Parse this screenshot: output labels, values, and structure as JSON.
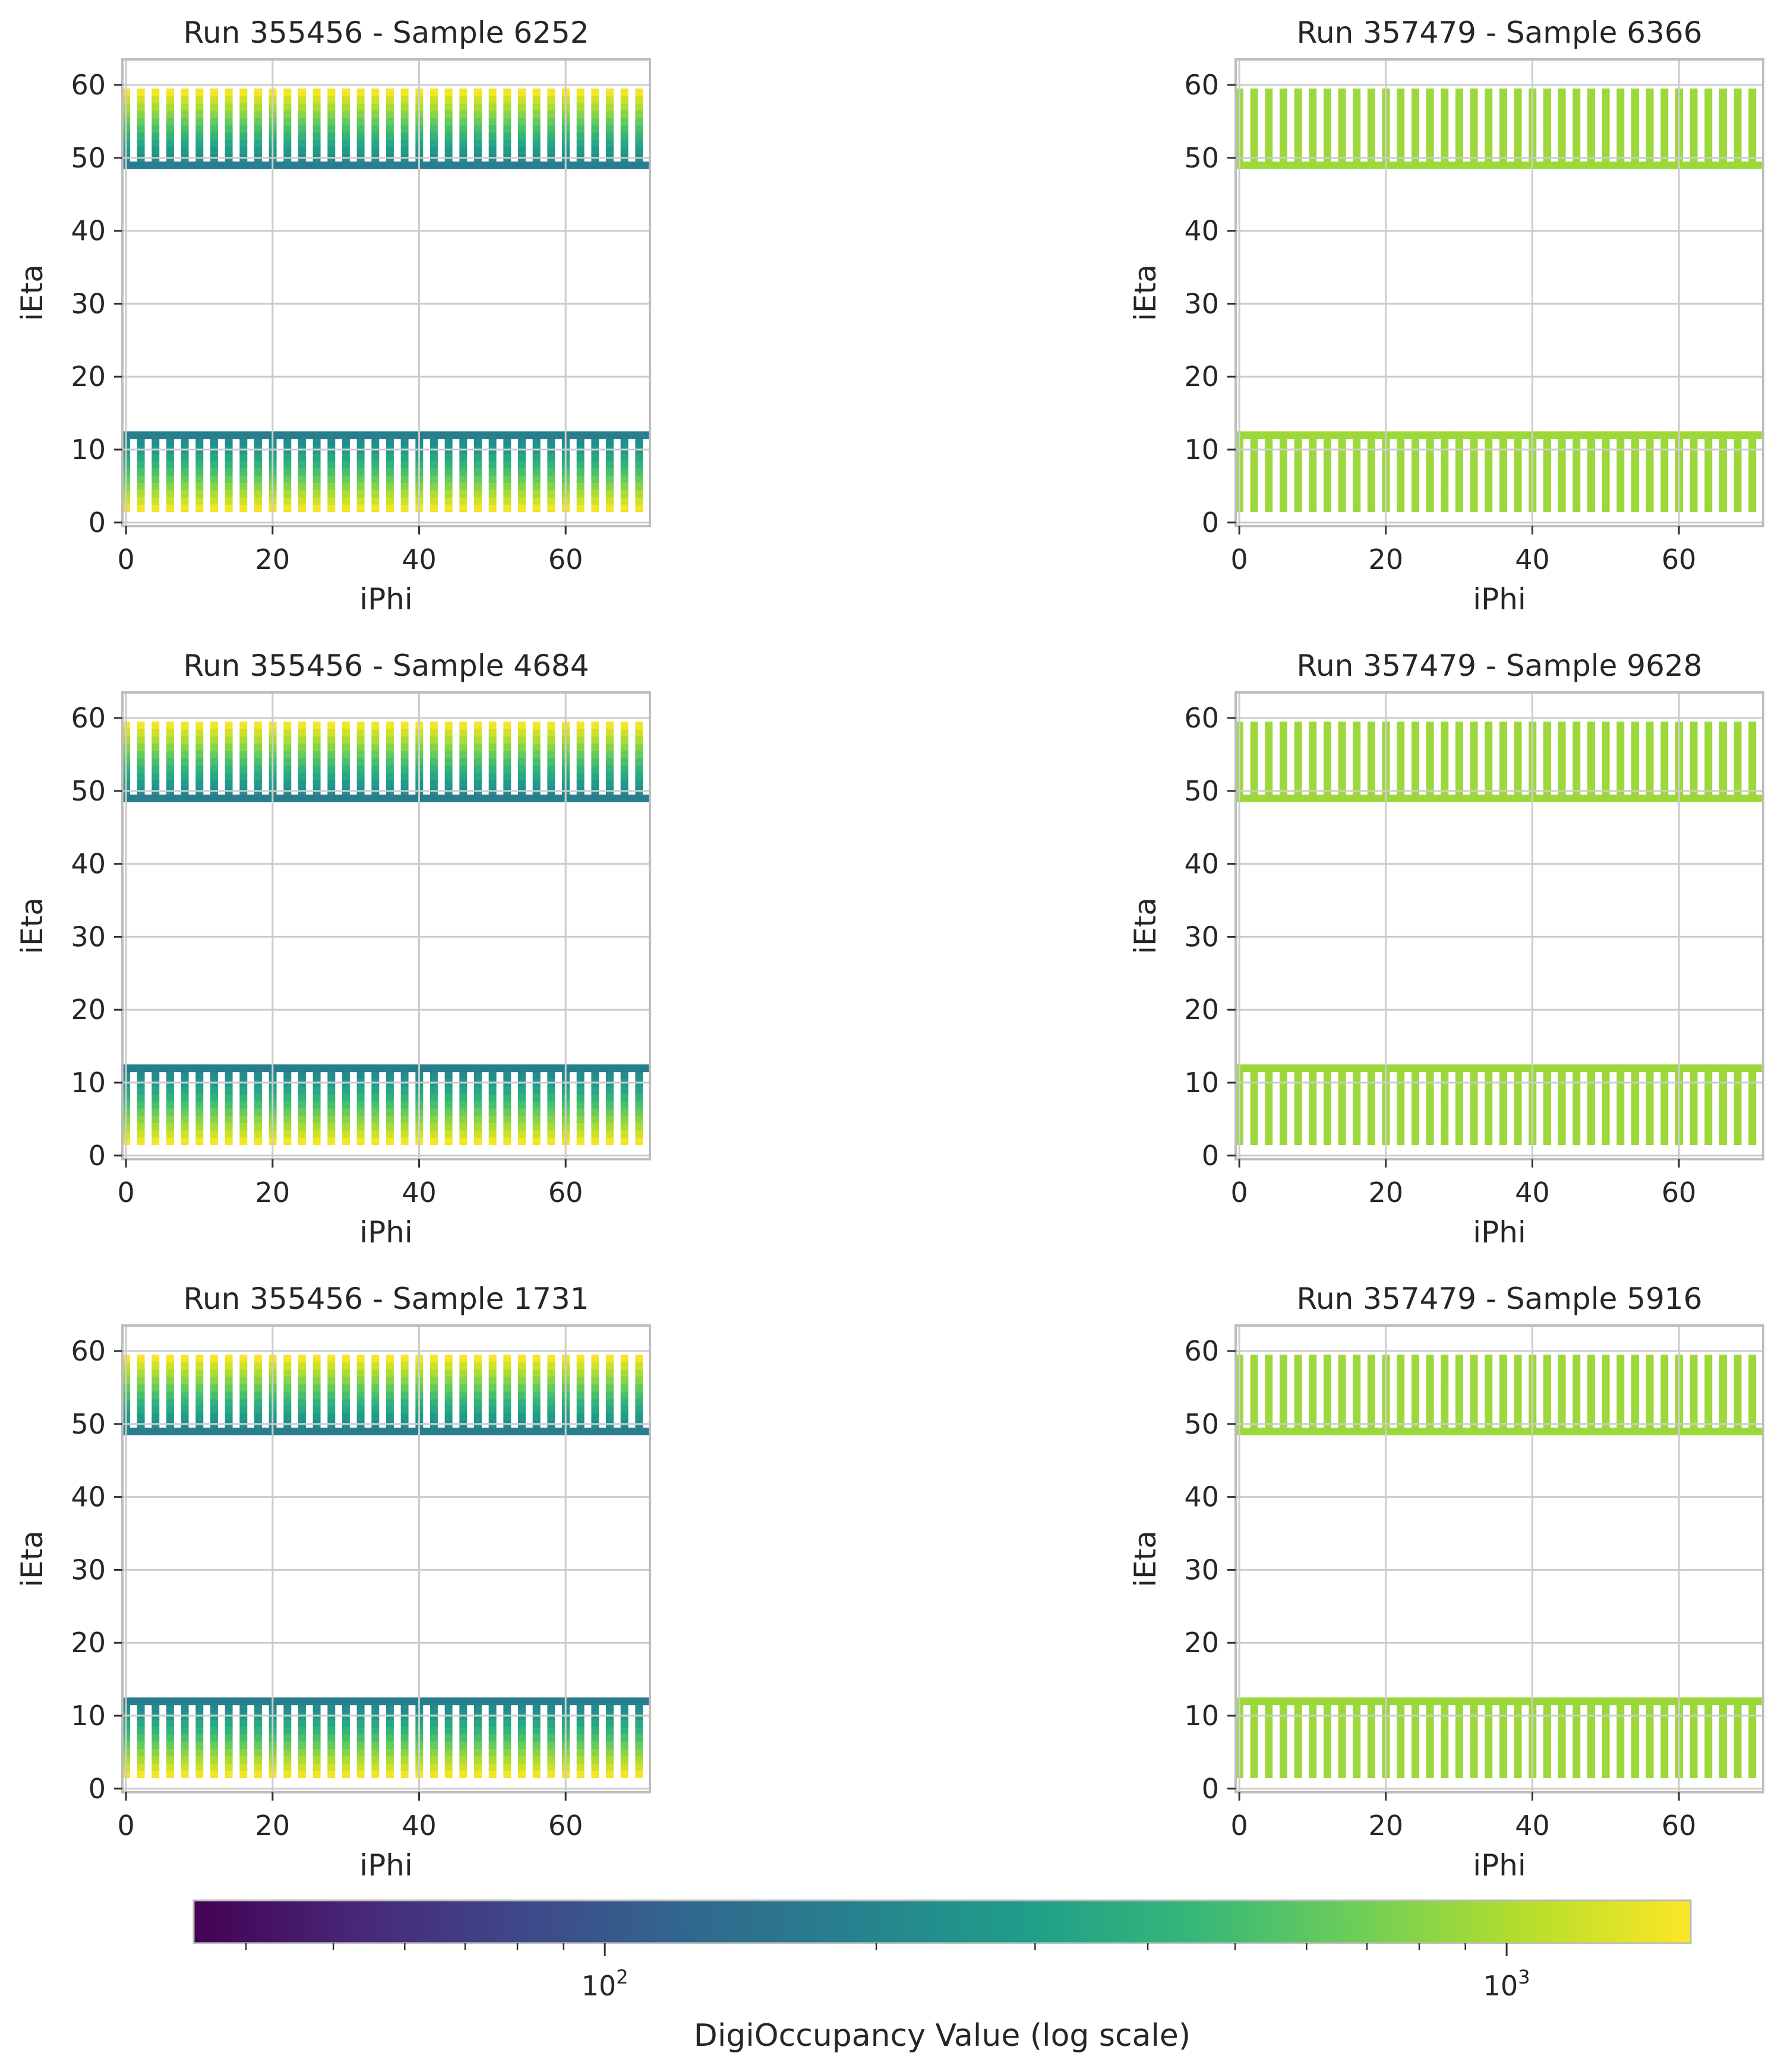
{
  "figure": {
    "colorbar_label": "DigiOccupancy Value (log scale)",
    "colorbar_range": [
      35,
      1600
    ],
    "colorbar_ticks": [
      {
        "value": 100,
        "mantissa": "10",
        "exp": "2"
      },
      {
        "value": 1000,
        "mantissa": "10",
        "exp": "3"
      }
    ],
    "colormap": "viridis",
    "colormap_stops": [
      "#440154",
      "#482878",
      "#3e4989",
      "#31688e",
      "#26828e",
      "#1f9e89",
      "#35b779",
      "#6ece58",
      "#b5de2b",
      "#fde725"
    ]
  },
  "chart_data": [
    {
      "type": "heatmap",
      "title": "Run 355456 - Sample 6252",
      "xlabel": "iPhi",
      "ylabel": "iEta",
      "xlim": [
        -0.5,
        71.5
      ],
      "ylim": [
        63.5,
        -0.5
      ],
      "y_inverted": true,
      "xticks": [
        0,
        20,
        40,
        60
      ],
      "yticks": [
        0,
        10,
        20,
        30,
        40,
        50,
        60
      ],
      "grid": true,
      "occupied_ieta_ranges": [
        [
          3,
          13
        ],
        [
          50,
          60
        ]
      ],
      "occupancy_profile": "gradient",
      "approx_value_range": [
        180,
        1500
      ]
    },
    {
      "type": "heatmap",
      "title": "Run 357479 - Sample 6366",
      "xlabel": "iPhi",
      "ylabel": "iEta",
      "xlim": [
        -0.5,
        71.5
      ],
      "ylim": [
        63.5,
        -0.5
      ],
      "y_inverted": true,
      "xticks": [
        0,
        20,
        40,
        60
      ],
      "yticks": [
        0,
        10,
        20,
        30,
        40,
        50,
        60
      ],
      "grid": true,
      "occupied_ieta_ranges": [
        [
          3,
          13
        ],
        [
          50,
          60
        ]
      ],
      "occupancy_profile": "uniform",
      "approx_value": 900
    },
    {
      "type": "heatmap",
      "title": "Run 355456 - Sample 4684",
      "xlabel": "iPhi",
      "ylabel": "iEta",
      "xlim": [
        -0.5,
        71.5
      ],
      "ylim": [
        63.5,
        -0.5
      ],
      "y_inverted": true,
      "xticks": [
        0,
        20,
        40,
        60
      ],
      "yticks": [
        0,
        10,
        20,
        30,
        40,
        50,
        60
      ],
      "grid": true,
      "occupied_ieta_ranges": [
        [
          3,
          13
        ],
        [
          50,
          60
        ]
      ],
      "occupancy_profile": "gradient",
      "approx_value_range": [
        180,
        1500
      ]
    },
    {
      "type": "heatmap",
      "title": "Run 357479 - Sample 9628",
      "xlabel": "iPhi",
      "ylabel": "iEta",
      "xlim": [
        -0.5,
        71.5
      ],
      "ylim": [
        63.5,
        -0.5
      ],
      "y_inverted": true,
      "xticks": [
        0,
        20,
        40,
        60
      ],
      "yticks": [
        0,
        10,
        20,
        30,
        40,
        50,
        60
      ],
      "grid": true,
      "occupied_ieta_ranges": [
        [
          3,
          13
        ],
        [
          50,
          60
        ]
      ],
      "occupancy_profile": "uniform",
      "approx_value": 900
    },
    {
      "type": "heatmap",
      "title": "Run 355456 - Sample 1731",
      "xlabel": "iPhi",
      "ylabel": "iEta",
      "xlim": [
        -0.5,
        71.5
      ],
      "ylim": [
        63.5,
        -0.5
      ],
      "y_inverted": true,
      "xticks": [
        0,
        20,
        40,
        60
      ],
      "yticks": [
        0,
        10,
        20,
        30,
        40,
        50,
        60
      ],
      "grid": true,
      "occupied_ieta_ranges": [
        [
          3,
          13
        ],
        [
          50,
          60
        ]
      ],
      "occupancy_profile": "gradient",
      "approx_value_range": [
        180,
        1500
      ]
    },
    {
      "type": "heatmap",
      "title": "Run 357479 - Sample 5916",
      "xlabel": "iPhi",
      "ylabel": "iEta",
      "xlim": [
        -0.5,
        71.5
      ],
      "ylim": [
        63.5,
        -0.5
      ],
      "y_inverted": true,
      "xticks": [
        0,
        20,
        40,
        60
      ],
      "yticks": [
        0,
        10,
        20,
        30,
        40,
        50,
        60
      ],
      "grid": true,
      "occupied_ieta_ranges": [
        [
          3,
          13
        ],
        [
          50,
          60
        ]
      ],
      "occupancy_profile": "uniform",
      "approx_value": 900
    }
  ]
}
